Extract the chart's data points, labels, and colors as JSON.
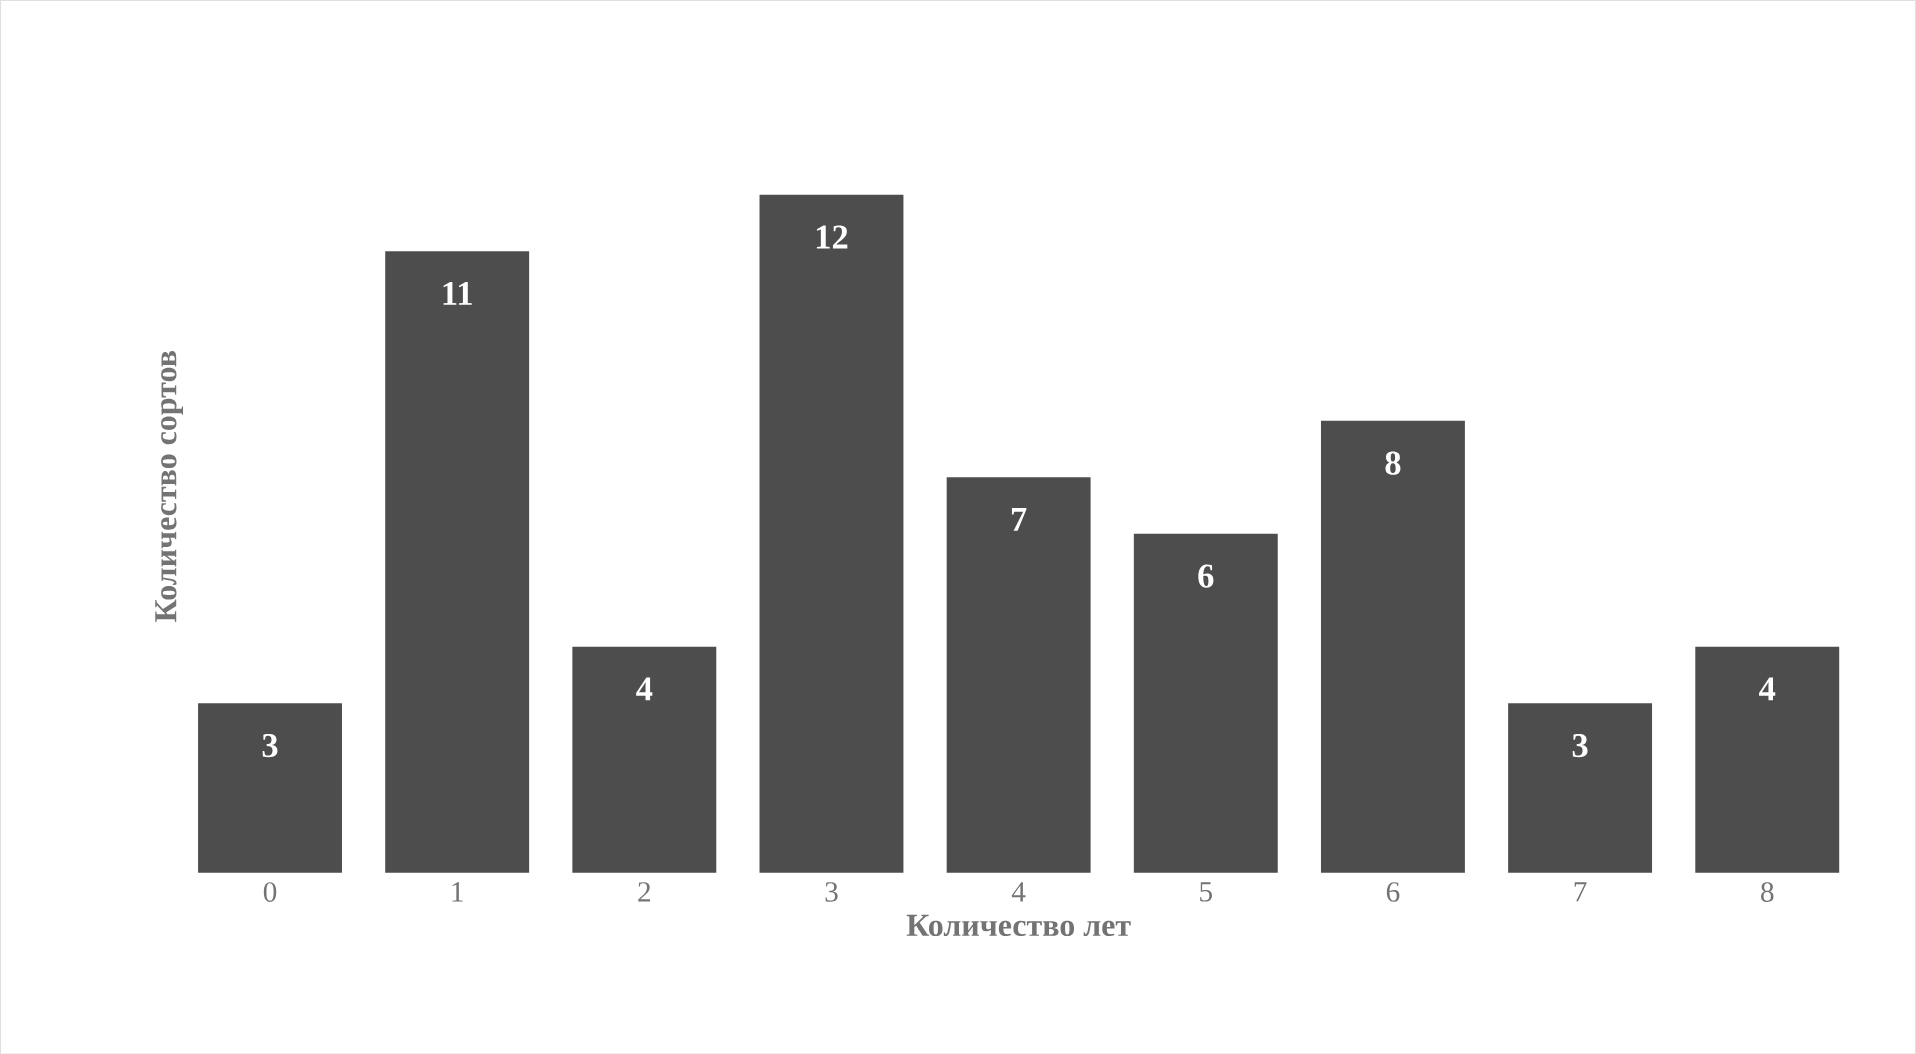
{
  "chart_data": {
    "type": "bar",
    "xlabel": "Количество лет",
    "ylabel": "Количество сортов",
    "categories": [
      "0",
      "1",
      "2",
      "3",
      "4",
      "5",
      "6",
      "7",
      "8"
    ],
    "values": [
      3,
      11,
      4,
      12,
      7,
      6,
      8,
      3,
      4
    ],
    "color": "#4d4d4d",
    "data_labels": true
  }
}
